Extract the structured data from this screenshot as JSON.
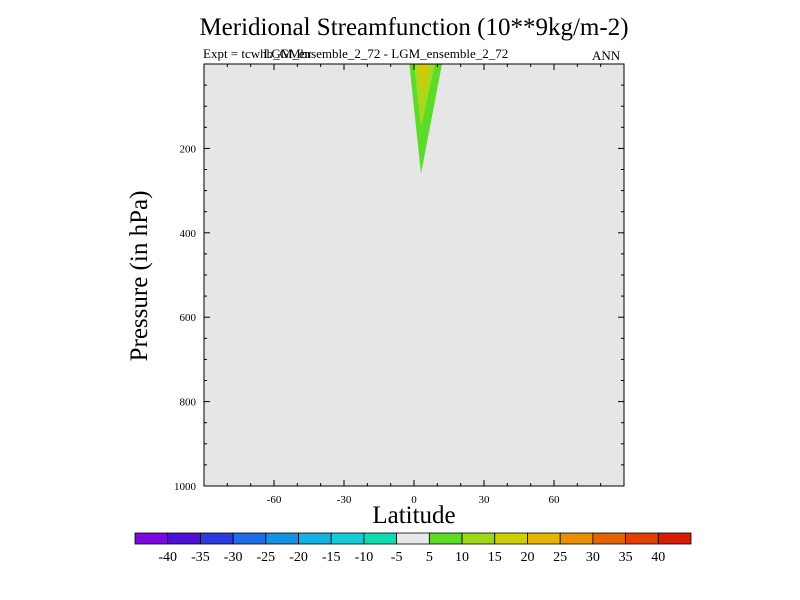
{
  "chart_data": {
    "type": "contour",
    "title": "Meridional Streamfunction (10**9kg/m-2)",
    "expt_label": "Expt = tcwhb_GMbr",
    "subtitle": "LGM_ensemble_2_72 - LGM_ensemble_2_72",
    "period": "ANN",
    "xlabel": "Latitude",
    "ylabel": "Pressure (in hPa)",
    "xlim": [
      -90,
      90
    ],
    "ylim": [
      1000,
      0
    ],
    "x_ticks": [
      -60,
      -30,
      0,
      30,
      60
    ],
    "y_ticks": [
      200,
      400,
      600,
      800,
      1000
    ],
    "background_color": "#e6e6e6",
    "contour_levels": [
      {
        "level": 5,
        "color": "#5cdc28",
        "boundary": [
          [
            -2,
            0
          ],
          [
            3,
            260
          ],
          [
            12,
            0
          ]
        ]
      },
      {
        "level": 10,
        "color": "#a8d820",
        "boundary": [
          [
            0,
            0
          ],
          [
            3,
            150
          ],
          [
            9,
            0
          ]
        ]
      },
      {
        "level": 15,
        "color": "#d4c800",
        "boundary": [
          [
            2,
            0
          ],
          [
            4,
            80
          ],
          [
            6,
            0
          ]
        ]
      }
    ],
    "colorbar": {
      "labels": [
        "-40",
        "-35",
        "-30",
        "-25",
        "-20",
        "-15",
        "-10",
        "-5",
        "5",
        "10",
        "15",
        "20",
        "25",
        "30",
        "35",
        "40"
      ],
      "colors": [
        "#7a0ae0",
        "#4e10d8",
        "#2a3ce0",
        "#1e6ce6",
        "#1690e2",
        "#14b2e0",
        "#12ccda",
        "#10dcb0",
        "#e8e8e8",
        "#5cdc28",
        "#9cd818",
        "#d0d000",
        "#e4b400",
        "#e89000",
        "#e26400",
        "#e24000",
        "#d81c00"
      ]
    }
  }
}
